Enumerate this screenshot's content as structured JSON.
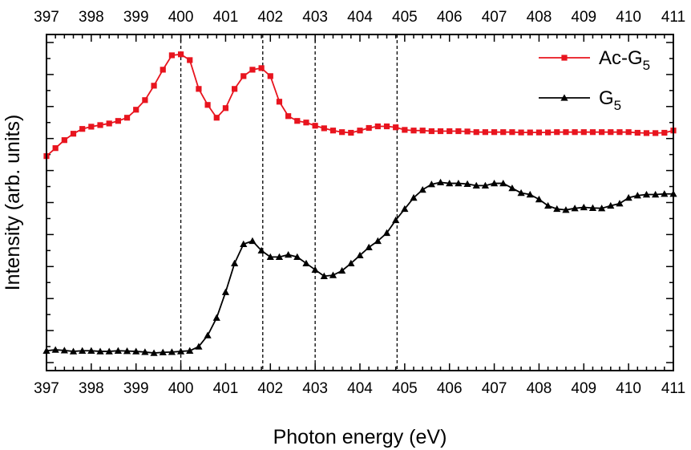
{
  "chart_data": {
    "type": "line",
    "xlabel": "Photon energy (eV)",
    "ylabel": "Intensity (arb. units)",
    "xlim": [
      397,
      411
    ],
    "x_ticks": [
      "397",
      "398",
      "399",
      "400",
      "401",
      "402",
      "403",
      "404",
      "405",
      "406",
      "407",
      "408",
      "409",
      "410",
      "411"
    ],
    "y_tick_labels": "none",
    "grid": false,
    "legend_position": "top-right",
    "reference_lines_x": [
      400.0,
      401.83,
      403.0,
      404.83
    ],
    "series": [
      {
        "name": "Ac-G5",
        "legend_main": "Ac-G",
        "legend_sub": "5",
        "color": "#e8141e",
        "marker": "square",
        "x": [
          397.0,
          397.2,
          397.4,
          397.6,
          397.8,
          398.0,
          398.2,
          398.4,
          398.6,
          398.8,
          399.0,
          399.2,
          399.4,
          399.6,
          399.8,
          400.0,
          400.2,
          400.4,
          400.6,
          400.8,
          401.0,
          401.2,
          401.4,
          401.6,
          401.8,
          402.0,
          402.2,
          402.4,
          402.6,
          402.8,
          403.0,
          403.2,
          403.4,
          403.6,
          403.8,
          404.0,
          404.2,
          404.4,
          404.6,
          404.8,
          405.0,
          405.2,
          405.4,
          405.6,
          405.8,
          406.0,
          406.2,
          406.4,
          406.6,
          406.8,
          407.0,
          407.2,
          407.4,
          407.6,
          407.8,
          408.0,
          408.2,
          408.4,
          408.6,
          408.8,
          409.0,
          409.2,
          409.4,
          409.6,
          409.8,
          410.0,
          410.2,
          410.4,
          410.6,
          410.8,
          411.0
        ],
        "y": [
          6.7,
          6.95,
          7.2,
          7.4,
          7.55,
          7.62,
          7.67,
          7.72,
          7.8,
          7.9,
          8.15,
          8.45,
          8.9,
          9.4,
          9.85,
          9.88,
          9.7,
          8.8,
          8.3,
          7.9,
          8.2,
          8.8,
          9.2,
          9.4,
          9.45,
          9.2,
          8.4,
          7.95,
          7.8,
          7.75,
          7.65,
          7.57,
          7.5,
          7.45,
          7.43,
          7.5,
          7.58,
          7.63,
          7.63,
          7.6,
          7.52,
          7.5,
          7.5,
          7.48,
          7.48,
          7.48,
          7.48,
          7.47,
          7.45,
          7.45,
          7.45,
          7.45,
          7.45,
          7.44,
          7.44,
          7.44,
          7.44,
          7.45,
          7.45,
          7.45,
          7.45,
          7.45,
          7.45,
          7.45,
          7.45,
          7.45,
          7.43,
          7.42,
          7.42,
          7.43,
          7.5
        ]
      },
      {
        "name": "G5",
        "legend_main": "G",
        "legend_sub": "5",
        "color": "#000000",
        "marker": "triangle",
        "x": [
          397.0,
          397.2,
          397.4,
          397.6,
          397.8,
          398.0,
          398.2,
          398.4,
          398.6,
          398.8,
          399.0,
          399.2,
          399.4,
          399.6,
          399.8,
          400.0,
          400.2,
          400.4,
          400.6,
          400.8,
          401.0,
          401.2,
          401.4,
          401.6,
          401.8,
          402.0,
          402.2,
          402.4,
          402.6,
          402.8,
          403.0,
          403.2,
          403.4,
          403.6,
          403.8,
          404.0,
          404.2,
          404.4,
          404.6,
          404.8,
          405.0,
          405.2,
          405.4,
          405.6,
          405.8,
          406.0,
          406.2,
          406.4,
          406.6,
          406.8,
          407.0,
          407.2,
          407.4,
          407.6,
          407.8,
          408.0,
          408.2,
          408.4,
          408.6,
          408.8,
          409.0,
          409.2,
          409.4,
          409.6,
          409.8,
          410.0,
          410.2,
          410.4,
          410.6,
          410.8,
          411.0
        ],
        "y": [
          0.62,
          0.65,
          0.63,
          0.6,
          0.62,
          0.62,
          0.6,
          0.6,
          0.62,
          0.61,
          0.6,
          0.58,
          0.55,
          0.57,
          0.58,
          0.6,
          0.62,
          0.75,
          1.1,
          1.65,
          2.45,
          3.35,
          3.95,
          4.05,
          3.75,
          3.55,
          3.55,
          3.62,
          3.55,
          3.35,
          3.15,
          2.95,
          2.98,
          3.12,
          3.35,
          3.6,
          3.85,
          4.05,
          4.3,
          4.7,
          5.05,
          5.4,
          5.65,
          5.82,
          5.88,
          5.85,
          5.85,
          5.83,
          5.78,
          5.78,
          5.85,
          5.85,
          5.7,
          5.55,
          5.5,
          5.35,
          5.15,
          5.05,
          5.02,
          5.07,
          5.1,
          5.08,
          5.07,
          5.15,
          5.22,
          5.4,
          5.47,
          5.5,
          5.5,
          5.52,
          5.52
        ]
      }
    ]
  }
}
